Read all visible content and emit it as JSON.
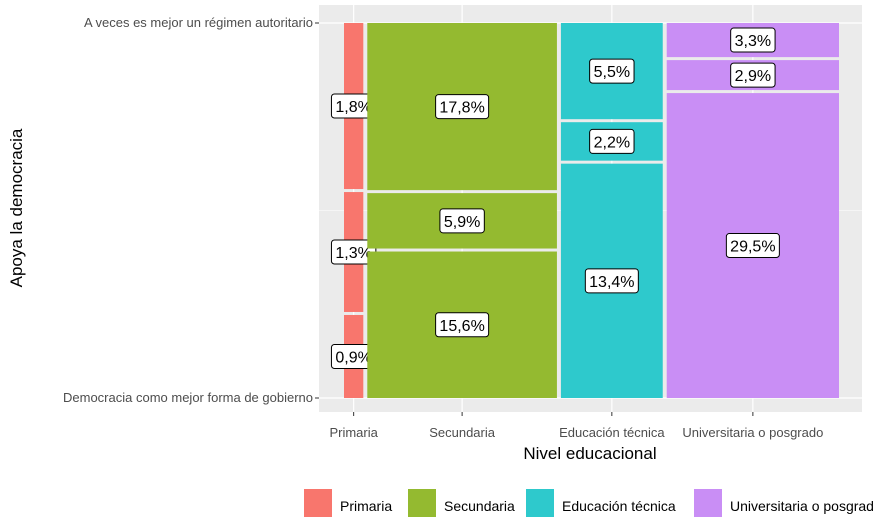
{
  "chart_data": {
    "type": "mosaic",
    "xlabel": "Nivel educacional",
    "ylabel": "Apoya la democracia",
    "x_categories": [
      "Primaria",
      "Secundaria",
      "Educación técnica",
      "Universitaria o posgrado"
    ],
    "y_tick_labels": [
      "Democracia como mejor forma de gobierno",
      "A veces es mejor un régimen autoritario"
    ],
    "legend": {
      "position": "bottom",
      "entries": [
        "Primaria",
        "Secundaria",
        "Educación técnica",
        "Universitaria o posgrado"
      ]
    },
    "colors": {
      "Primaria": "#F8766D",
      "Secundaria": "#94BA30",
      "Educación técnica": "#2EC9CC",
      "Universitaria o posgrado": "#C98EF5"
    },
    "segments": [
      {
        "column": "Primaria",
        "values": [
          0.9,
          1.3,
          1.8
        ],
        "labels": [
          "0,9%",
          "1,3%",
          "1,8%"
        ]
      },
      {
        "column": "Secundaria",
        "values": [
          15.6,
          5.9,
          17.8
        ],
        "labels": [
          "15,6%",
          "5,9%",
          "17,8%"
        ]
      },
      {
        "column": "Educación técnica",
        "values": [
          13.4,
          2.2,
          5.5
        ],
        "labels": [
          "13,4%",
          "2,2%",
          "5,5%"
        ]
      },
      {
        "column": "Universitaria o posgrado",
        "values": [
          29.5,
          2.9,
          3.3
        ],
        "labels": [
          "29,5%",
          "2,9%",
          "3,3%"
        ]
      }
    ],
    "grid": true
  }
}
